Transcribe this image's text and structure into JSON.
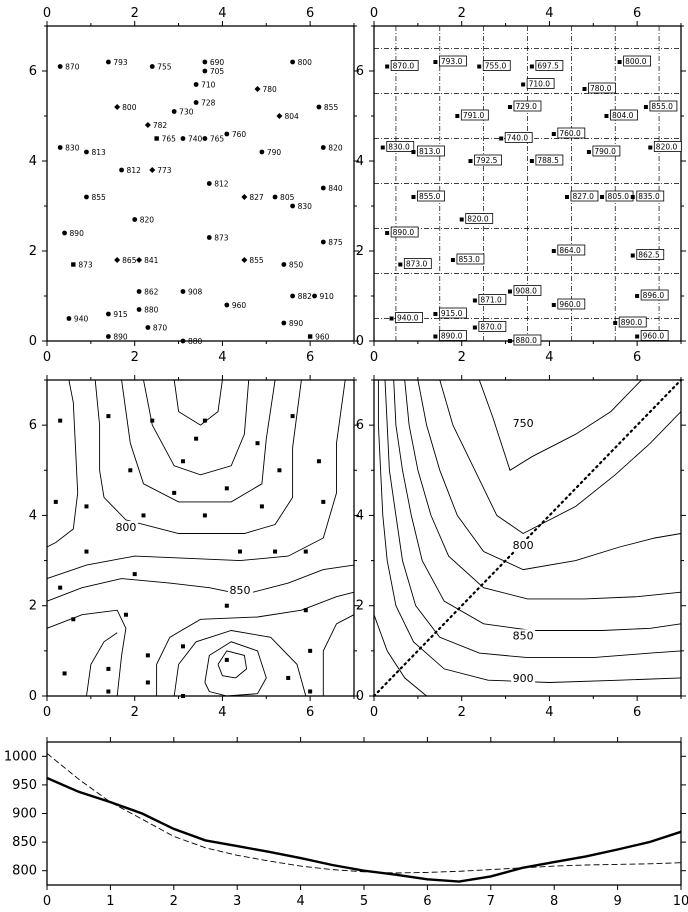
{
  "chart_data": [
    {
      "id": "p1",
      "type": "scatter",
      "title": "",
      "xlabel": "",
      "ylabel": "",
      "xlim": [
        0,
        7
      ],
      "ylim": [
        0,
        7
      ],
      "x_ticks": [
        "0",
        "2",
        "4",
        "6"
      ],
      "y_ticks": [
        "0",
        "2",
        "4",
        "6"
      ],
      "axis_labels_top": true,
      "points": [
        {
          "x": 0.3,
          "y": 6.1,
          "label": "870",
          "marker": "circle"
        },
        {
          "x": 1.4,
          "y": 6.2,
          "label": "793",
          "marker": "circle"
        },
        {
          "x": 2.4,
          "y": 6.1,
          "label": "755",
          "marker": "circle"
        },
        {
          "x": 3.6,
          "y": 6.2,
          "label": "690",
          "marker": "circle"
        },
        {
          "x": 3.6,
          "y": 6.0,
          "label": "705",
          "marker": "circle"
        },
        {
          "x": 5.6,
          "y": 6.2,
          "label": "800",
          "marker": "circle"
        },
        {
          "x": 3.4,
          "y": 5.7,
          "label": "710",
          "marker": "circle"
        },
        {
          "x": 4.8,
          "y": 5.6,
          "label": "780",
          "marker": "diamond"
        },
        {
          "x": 1.6,
          "y": 5.2,
          "label": "800",
          "marker": "diamond"
        },
        {
          "x": 3.4,
          "y": 5.3,
          "label": "728",
          "marker": "circle"
        },
        {
          "x": 2.9,
          "y": 5.1,
          "label": "730",
          "marker": "circle"
        },
        {
          "x": 5.3,
          "y": 5.0,
          "label": "804",
          "marker": "diamond"
        },
        {
          "x": 6.2,
          "y": 5.2,
          "label": "855",
          "marker": "circle"
        },
        {
          "x": 2.3,
          "y": 4.8,
          "label": "782",
          "marker": "diamond"
        },
        {
          "x": 4.1,
          "y": 4.6,
          "label": "760",
          "marker": "circle"
        },
        {
          "x": 2.5,
          "y": 4.5,
          "label": "765",
          "marker": "square"
        },
        {
          "x": 3.1,
          "y": 4.5,
          "label": "740",
          "marker": "circle"
        },
        {
          "x": 3.6,
          "y": 4.5,
          "label": "765",
          "marker": "circle"
        },
        {
          "x": 0.3,
          "y": 4.3,
          "label": "830",
          "marker": "circle"
        },
        {
          "x": 0.9,
          "y": 4.2,
          "label": "813",
          "marker": "circle"
        },
        {
          "x": 4.9,
          "y": 4.2,
          "label": "790",
          "marker": "circle"
        },
        {
          "x": 6.3,
          "y": 4.3,
          "label": "820",
          "marker": "circle"
        },
        {
          "x": 1.7,
          "y": 3.8,
          "label": "812",
          "marker": "circle"
        },
        {
          "x": 2.4,
          "y": 3.8,
          "label": "773",
          "marker": "diamond"
        },
        {
          "x": 3.7,
          "y": 3.5,
          "label": "812",
          "marker": "circle"
        },
        {
          "x": 6.3,
          "y": 3.4,
          "label": "840",
          "marker": "circle"
        },
        {
          "x": 0.9,
          "y": 3.2,
          "label": "855",
          "marker": "circle"
        },
        {
          "x": 4.5,
          "y": 3.2,
          "label": "827",
          "marker": "diamond"
        },
        {
          "x": 5.2,
          "y": 3.2,
          "label": "805",
          "marker": "circle"
        },
        {
          "x": 5.6,
          "y": 3.0,
          "label": "830",
          "marker": "circle"
        },
        {
          "x": 2.0,
          "y": 2.7,
          "label": "820",
          "marker": "circle"
        },
        {
          "x": 0.4,
          "y": 2.4,
          "label": "890",
          "marker": "circle"
        },
        {
          "x": 3.7,
          "y": 2.3,
          "label": "873",
          "marker": "circle"
        },
        {
          "x": 6.3,
          "y": 2.2,
          "label": "875",
          "marker": "circle"
        },
        {
          "x": 0.6,
          "y": 1.7,
          "label": "873",
          "marker": "square"
        },
        {
          "x": 1.6,
          "y": 1.8,
          "label": "865",
          "marker": "diamond"
        },
        {
          "x": 2.1,
          "y": 1.8,
          "label": "841",
          "marker": "diamond"
        },
        {
          "x": 4.5,
          "y": 1.8,
          "label": "855",
          "marker": "diamond"
        },
        {
          "x": 5.4,
          "y": 1.7,
          "label": "850",
          "marker": "circle"
        },
        {
          "x": 2.1,
          "y": 1.1,
          "label": "862",
          "marker": "circle"
        },
        {
          "x": 3.1,
          "y": 1.1,
          "label": "908",
          "marker": "circle"
        },
        {
          "x": 5.6,
          "y": 1.0,
          "label": "882",
          "marker": "circle"
        },
        {
          "x": 6.1,
          "y": 1.0,
          "label": "910",
          "marker": "circle"
        },
        {
          "x": 4.1,
          "y": 0.8,
          "label": "960",
          "marker": "circle"
        },
        {
          "x": 2.1,
          "y": 0.7,
          "label": "880",
          "marker": "circle"
        },
        {
          "x": 0.5,
          "y": 0.5,
          "label": "940",
          "marker": "circle"
        },
        {
          "x": 1.4,
          "y": 0.6,
          "label": "915",
          "marker": "circle"
        },
        {
          "x": 2.3,
          "y": 0.3,
          "label": "870",
          "marker": "circle"
        },
        {
          "x": 5.4,
          "y": 0.4,
          "label": "890",
          "marker": "circle"
        },
        {
          "x": 1.4,
          "y": 0.1,
          "label": "890",
          "marker": "circle"
        },
        {
          "x": 3.1,
          "y": 0.0,
          "label": "880",
          "marker": "circle"
        },
        {
          "x": 6.0,
          "y": 0.1,
          "label": "960",
          "marker": "square"
        }
      ]
    },
    {
      "id": "p2",
      "type": "scatter",
      "title": "",
      "xlabel": "",
      "ylabel": "",
      "xlim": [
        0,
        7
      ],
      "ylim": [
        0,
        7
      ],
      "x_ticks": [
        "0",
        "2",
        "4",
        "6"
      ],
      "y_ticks": [
        "0",
        "2",
        "4",
        "6"
      ],
      "axis_labels_top": true,
      "grid": true,
      "grid_style": "dash-dot",
      "grid_x": [
        0.5,
        1.5,
        2.5,
        3.5,
        4.5,
        5.5,
        6.5
      ],
      "grid_y": [
        0.5,
        1.5,
        2.5,
        3.5,
        4.5,
        5.5,
        6.5
      ],
      "points": [
        {
          "x": 0.3,
          "y": 6.1,
          "label": "870.0"
        },
        {
          "x": 1.4,
          "y": 6.2,
          "label": "793.0"
        },
        {
          "x": 2.4,
          "y": 6.1,
          "label": "755.0"
        },
        {
          "x": 3.6,
          "y": 6.1,
          "label": "697.5"
        },
        {
          "x": 5.6,
          "y": 6.2,
          "label": "800.0"
        },
        {
          "x": 3.4,
          "y": 5.7,
          "label": "710.0"
        },
        {
          "x": 4.8,
          "y": 5.6,
          "label": "780.0"
        },
        {
          "x": 3.1,
          "y": 5.2,
          "label": "729.0"
        },
        {
          "x": 6.2,
          "y": 5.2,
          "label": "855.0"
        },
        {
          "x": 1.9,
          "y": 5.0,
          "label": "791.0"
        },
        {
          "x": 5.3,
          "y": 5.0,
          "label": "804.0"
        },
        {
          "x": 4.1,
          "y": 4.6,
          "label": "760.0"
        },
        {
          "x": 2.9,
          "y": 4.5,
          "label": "740.0"
        },
        {
          "x": 0.2,
          "y": 4.3,
          "label": "830.0"
        },
        {
          "x": 0.9,
          "y": 4.2,
          "label": "813.0"
        },
        {
          "x": 4.9,
          "y": 4.2,
          "label": "790.0"
        },
        {
          "x": 6.3,
          "y": 4.3,
          "label": "820.0"
        },
        {
          "x": 2.2,
          "y": 4.0,
          "label": "792.5"
        },
        {
          "x": 3.6,
          "y": 4.0,
          "label": "788.5"
        },
        {
          "x": 0.9,
          "y": 3.2,
          "label": "855.0"
        },
        {
          "x": 4.4,
          "y": 3.2,
          "label": "827.0"
        },
        {
          "x": 5.2,
          "y": 3.2,
          "label": "805.0"
        },
        {
          "x": 5.9,
          "y": 3.2,
          "label": "835.0"
        },
        {
          "x": 2.0,
          "y": 2.7,
          "label": "820.0"
        },
        {
          "x": 0.3,
          "y": 2.4,
          "label": "890.0"
        },
        {
          "x": 4.1,
          "y": 2.0,
          "label": "864.0"
        },
        {
          "x": 5.9,
          "y": 1.9,
          "label": "862.5"
        },
        {
          "x": 0.6,
          "y": 1.7,
          "label": "873.0"
        },
        {
          "x": 1.8,
          "y": 1.8,
          "label": "853.0"
        },
        {
          "x": 3.1,
          "y": 1.1,
          "label": "908.0"
        },
        {
          "x": 2.3,
          "y": 0.9,
          "label": "871.0"
        },
        {
          "x": 4.1,
          "y": 0.8,
          "label": "960.0"
        },
        {
          "x": 6.0,
          "y": 1.0,
          "label": "896.0"
        },
        {
          "x": 0.4,
          "y": 0.5,
          "label": "940.0"
        },
        {
          "x": 1.4,
          "y": 0.6,
          "label": "915.0"
        },
        {
          "x": 5.5,
          "y": 0.4,
          "label": "890.0"
        },
        {
          "x": 1.4,
          "y": 0.1,
          "label": "890.0"
        },
        {
          "x": 2.3,
          "y": 0.3,
          "label": "870.0"
        },
        {
          "x": 3.1,
          "y": 0.0,
          "label": "880.0"
        },
        {
          "x": 6.0,
          "y": 0.1,
          "label": "960.0"
        }
      ]
    },
    {
      "id": "p3",
      "type": "contour",
      "title": "",
      "xlabel": "",
      "ylabel": "",
      "xlim": [
        0,
        7
      ],
      "ylim": [
        0,
        7
      ],
      "x_ticks": [
        "0",
        "2",
        "4",
        "6"
      ],
      "y_ticks": [
        "0",
        "2",
        "4",
        "6"
      ],
      "contour_labels": [
        {
          "text": "800",
          "x": 1.8,
          "y": 3.7
        },
        {
          "text": "850",
          "x": 4.4,
          "y": 2.3
        }
      ],
      "points": [
        [
          0.3,
          6.1
        ],
        [
          1.4,
          6.2
        ],
        [
          2.4,
          6.1
        ],
        [
          3.6,
          6.1
        ],
        [
          5.6,
          6.2
        ],
        [
          3.4,
          5.7
        ],
        [
          4.8,
          5.6
        ],
        [
          3.1,
          5.2
        ],
        [
          6.2,
          5.2
        ],
        [
          1.9,
          5.0
        ],
        [
          5.3,
          5.0
        ],
        [
          4.1,
          4.6
        ],
        [
          2.9,
          4.5
        ],
        [
          0.2,
          4.3
        ],
        [
          0.9,
          4.2
        ],
        [
          4.9,
          4.2
        ],
        [
          6.3,
          4.3
        ],
        [
          2.2,
          4.0
        ],
        [
          3.6,
          4.0
        ],
        [
          0.9,
          3.2
        ],
        [
          4.4,
          3.2
        ],
        [
          5.2,
          3.2
        ],
        [
          5.9,
          3.2
        ],
        [
          2.0,
          2.7
        ],
        [
          0.3,
          2.4
        ],
        [
          4.1,
          2.0
        ],
        [
          5.9,
          1.9
        ],
        [
          0.6,
          1.7
        ],
        [
          1.8,
          1.8
        ],
        [
          3.1,
          1.1
        ],
        [
          2.3,
          0.9
        ],
        [
          4.1,
          0.8
        ],
        [
          6.0,
          1.0
        ],
        [
          0.4,
          0.5
        ],
        [
          1.4,
          0.6
        ],
        [
          5.5,
          0.4
        ],
        [
          1.4,
          0.1
        ],
        [
          2.3,
          0.3
        ],
        [
          3.1,
          0.0
        ],
        [
          6.0,
          0.1
        ]
      ]
    },
    {
      "id": "p4",
      "type": "contour",
      "title": "",
      "xlabel": "",
      "ylabel": "",
      "xlim": [
        0,
        7
      ],
      "ylim": [
        0,
        7
      ],
      "x_ticks": [
        "0",
        "2",
        "4",
        "6"
      ],
      "y_ticks": [
        "0",
        "2",
        "4",
        "6"
      ],
      "contour_labels": [
        {
          "text": "750",
          "x": 3.4,
          "y": 6.0
        },
        {
          "text": "800",
          "x": 3.4,
          "y": 3.3
        },
        {
          "text": "850",
          "x": 3.4,
          "y": 1.3
        },
        {
          "text": "900",
          "x": 3.4,
          "y": 0.35
        }
      ],
      "profile_line": {
        "from": [
          0,
          0
        ],
        "to": [
          7,
          7
        ]
      }
    },
    {
      "id": "p5",
      "type": "line",
      "title": "",
      "xlabel": "",
      "ylabel": "",
      "xlim": [
        0,
        10
      ],
      "ylim": [
        775,
        1025
      ],
      "x_ticks": [
        "0",
        "1",
        "2",
        "3",
        "4",
        "5",
        "6",
        "7",
        "8",
        "9",
        "10"
      ],
      "y_ticks": [
        "800",
        "850",
        "900",
        "950",
        "1000"
      ],
      "series": [
        {
          "style": "solid-thick",
          "x": [
            0,
            0.5,
            1,
            1.5,
            2,
            2.5,
            3,
            3.5,
            4,
            4.5,
            5,
            5.5,
            6,
            6.5,
            7,
            7.5,
            8,
            8.5,
            9,
            9.5,
            10
          ],
          "y": [
            962,
            938,
            920,
            900,
            873,
            853,
            843,
            833,
            822,
            810,
            800,
            793,
            785,
            781,
            790,
            805,
            815,
            825,
            837,
            850,
            868
          ]
        },
        {
          "style": "dashed",
          "x": [
            0,
            0.5,
            1,
            1.5,
            2,
            2.5,
            3,
            3.5,
            4,
            4.5,
            5,
            5.5,
            6,
            6.5,
            7,
            7.5,
            8,
            8.5,
            9,
            9.5,
            10
          ],
          "y": [
            1005,
            960,
            920,
            890,
            860,
            840,
            827,
            817,
            808,
            802,
            798,
            796,
            797,
            799,
            802,
            805,
            808,
            810,
            811,
            812,
            814
          ]
        }
      ]
    }
  ]
}
